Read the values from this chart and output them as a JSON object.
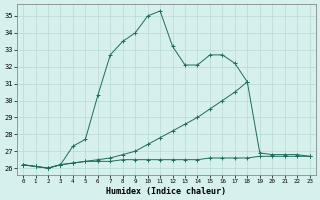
{
  "xlabel": "Humidex (Indice chaleur)",
  "xlim": [
    -0.5,
    23.5
  ],
  "ylim": [
    25.6,
    35.7
  ],
  "yticks": [
    26,
    27,
    28,
    29,
    30,
    31,
    32,
    33,
    34,
    35
  ],
  "xticks": [
    0,
    1,
    2,
    3,
    4,
    5,
    6,
    7,
    8,
    9,
    10,
    11,
    12,
    13,
    14,
    15,
    16,
    17,
    18,
    19,
    20,
    21,
    22,
    23
  ],
  "bg_color": "#d6f0ee",
  "grid_color": "#b8d8d4",
  "line_color": "#1e6b5e",
  "line1_x": [
    0,
    1,
    2,
    3,
    4,
    5,
    6,
    7,
    8,
    9,
    10,
    11,
    12,
    13,
    14,
    15,
    16,
    17,
    18
  ],
  "line1_y": [
    26.2,
    26.1,
    26.0,
    26.2,
    27.3,
    27.7,
    30.3,
    32.7,
    33.5,
    34.0,
    35.0,
    35.3,
    33.2,
    32.1,
    32.1,
    32.7,
    32.7,
    32.2,
    31.1
  ],
  "line2_x": [
    0,
    1,
    2,
    3,
    4,
    5,
    6,
    7,
    8,
    9,
    10,
    11,
    12,
    13,
    14,
    15,
    16,
    17,
    18,
    19,
    20,
    21,
    22,
    23
  ],
  "line2_y": [
    26.2,
    26.1,
    26.0,
    26.2,
    26.3,
    26.4,
    26.5,
    26.6,
    26.8,
    27.0,
    27.4,
    27.8,
    28.2,
    28.6,
    29.0,
    29.5,
    30.0,
    30.5,
    31.1,
    26.9,
    26.8,
    26.8,
    26.8,
    26.7
  ],
  "line3_x": [
    0,
    1,
    2,
    3,
    4,
    5,
    6,
    7,
    8,
    9,
    10,
    11,
    12,
    13,
    14,
    15,
    16,
    17,
    18,
    19,
    20,
    21,
    22,
    23
  ],
  "line3_y": [
    26.2,
    26.1,
    26.0,
    26.2,
    26.3,
    26.4,
    26.4,
    26.4,
    26.5,
    26.5,
    26.5,
    26.5,
    26.5,
    26.5,
    26.5,
    26.6,
    26.6,
    26.6,
    26.6,
    26.7,
    26.7,
    26.7,
    26.7,
    26.7
  ]
}
